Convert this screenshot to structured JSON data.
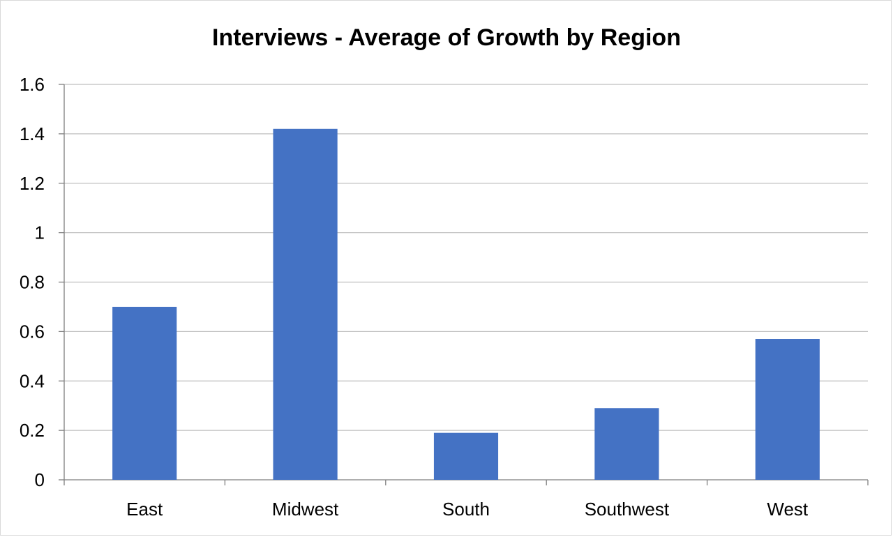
{
  "chart_data": {
    "type": "bar",
    "title": "Interviews - Average of Growth by Region",
    "categories": [
      "East",
      "Midwest",
      "South",
      "Southwest",
      "West"
    ],
    "values": [
      0.7,
      1.42,
      0.19,
      0.29,
      0.57
    ],
    "y_ticks": [
      "0",
      "0.2",
      "0.4",
      "0.6",
      "0.8",
      "1",
      "1.2",
      "1.4",
      "1.6"
    ],
    "ylim": [
      0,
      1.6
    ],
    "grid": true,
    "legend": "none",
    "bar_color": "#4472C4",
    "grid_color": "#bfbfbf",
    "xlabel": "",
    "ylabel": ""
  }
}
